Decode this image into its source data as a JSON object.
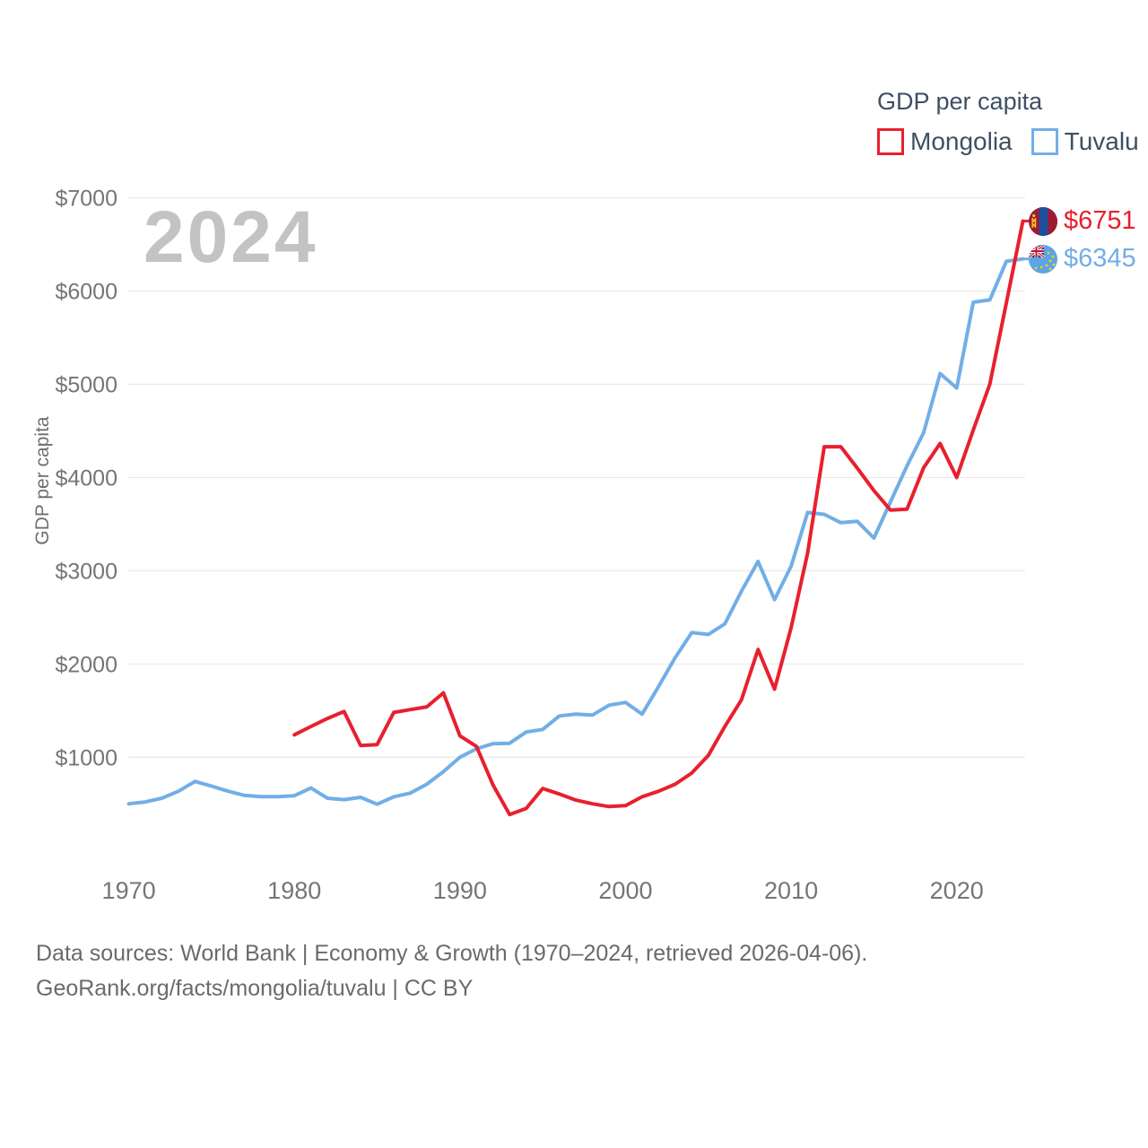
{
  "watermark": "2024",
  "legend": {
    "title": "GDP per capita",
    "items": [
      {
        "label": "Mongolia",
        "color": "#e8202e"
      },
      {
        "label": "Tuvalu",
        "color": "#72aee6"
      }
    ]
  },
  "y_axis": {
    "title": "GDP per capita"
  },
  "end_labels": [
    {
      "country": "Mongolia",
      "value": "$6751",
      "color": "#e8202e"
    },
    {
      "country": "Tuvalu",
      "value": "$6345",
      "color": "#72aee6"
    }
  ],
  "footer": {
    "line1": "Data sources: World Bank | Economy & Growth (1970–2024, retrieved 2026-04-06).",
    "line2": "GeoRank.org/facts/mongolia/tuvalu | CC BY"
  },
  "colors": {
    "mongolia": "#e8202e",
    "tuvalu": "#72aee6",
    "gridline": "#e9e9e9",
    "axis_text": "#757575",
    "watermark": "#c3c3c3"
  },
  "chart_data": {
    "type": "line",
    "title": "GDP per capita",
    "xlabel": "",
    "ylabel": "GDP per capita",
    "x_range": [
      1970,
      2024
    ],
    "ylim": [
      0,
      7000
    ],
    "grid": "horizontal",
    "legend_position": "top-right",
    "x_ticks": [
      1970,
      1980,
      1990,
      2000,
      2010,
      2020
    ],
    "y_ticks": [
      1000,
      2000,
      3000,
      4000,
      5000,
      6000,
      7000
    ],
    "y_tick_labels": [
      "$1000",
      "$2000",
      "$3000",
      "$4000",
      "$5000",
      "$6000",
      "$7000"
    ],
    "series": [
      {
        "name": "Tuvalu",
        "color": "#72aee6",
        "x_start": 1970,
        "values": [
          500,
          520,
          560,
          635,
          740,
          690,
          635,
          590,
          577,
          577,
          587,
          670,
          560,
          545,
          570,
          495,
          575,
          615,
          710,
          845,
          1000,
          1090,
          1145,
          1150,
          1270,
          1298,
          1442,
          1462,
          1452,
          1558,
          1587,
          1462,
          1760,
          2067,
          2337,
          2317,
          2430,
          2780,
          3100,
          2690,
          3050,
          3625,
          3605,
          3515,
          3530,
          3350,
          3740,
          4125,
          4480,
          5115,
          4960,
          5880,
          5905,
          6320,
          6345
        ]
      },
      {
        "name": "Mongolia",
        "color": "#e8202e",
        "x_start": 1980,
        "values": [
          1240,
          1330,
          1415,
          1490,
          1125,
          1135,
          1480,
          1510,
          1540,
          1690,
          1230,
          1115,
          700,
          385,
          450,
          665,
          605,
          540,
          500,
          470,
          480,
          575,
          635,
          710,
          830,
          1020,
          1330,
          1615,
          2155,
          1730,
          2390,
          3190,
          4330,
          4330,
          4100,
          3860,
          3650,
          3660,
          4105,
          4365,
          4000,
          4510,
          5000,
          5875,
          6751
        ]
      }
    ]
  }
}
